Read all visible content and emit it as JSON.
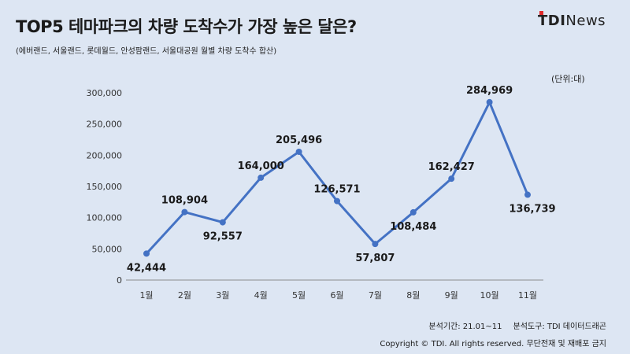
{
  "header": {
    "title": "TOP5 테마파크의 차량 도착수가 가장 높은 달은?",
    "subtitle": "(에버랜드, 서울랜드, 롯데월드, 안성팜랜드, 서울대공원 월별 차량 도착수 합산)",
    "logo_brand": "TDI",
    "logo_news": "News"
  },
  "unit_label": "(단위:대)",
  "footer": {
    "period": "분석기간: 21.01~11",
    "tool": "분석도구: TDI 데이터드래곤",
    "copyright": "Copyright © TDI. All rights reserved. 무단전재 및 재배포 금지"
  },
  "colors": {
    "background": "#dde6f3",
    "line": "#4472c4",
    "accent": "#e02a2a"
  },
  "chart_data": {
    "type": "line",
    "title": "TOP5 테마파크의 차량 도착수가 가장 높은 달은?",
    "categories": [
      "1월",
      "2월",
      "3월",
      "4월",
      "5월",
      "6월",
      "7월",
      "8월",
      "9월",
      "10월",
      "11월"
    ],
    "values": [
      42444,
      108904,
      92557,
      164000,
      205496,
      126571,
      57807,
      108484,
      162427,
      284969,
      136739
    ],
    "value_labels": [
      "42,444",
      "108,904",
      "92,557",
      "164,000",
      "205,496",
      "126,571",
      "57,807",
      "108,484",
      "162,427",
      "284,969",
      "136,739"
    ],
    "yticks": [
      0,
      50000,
      100000,
      150000,
      200000,
      250000,
      300000
    ],
    "ytick_labels": [
      "0",
      "50,000",
      "100,000",
      "150,000",
      "200,000",
      "250,000",
      "300,000"
    ],
    "ylim": [
      0,
      300000
    ],
    "grid": false,
    "legend": "none"
  }
}
